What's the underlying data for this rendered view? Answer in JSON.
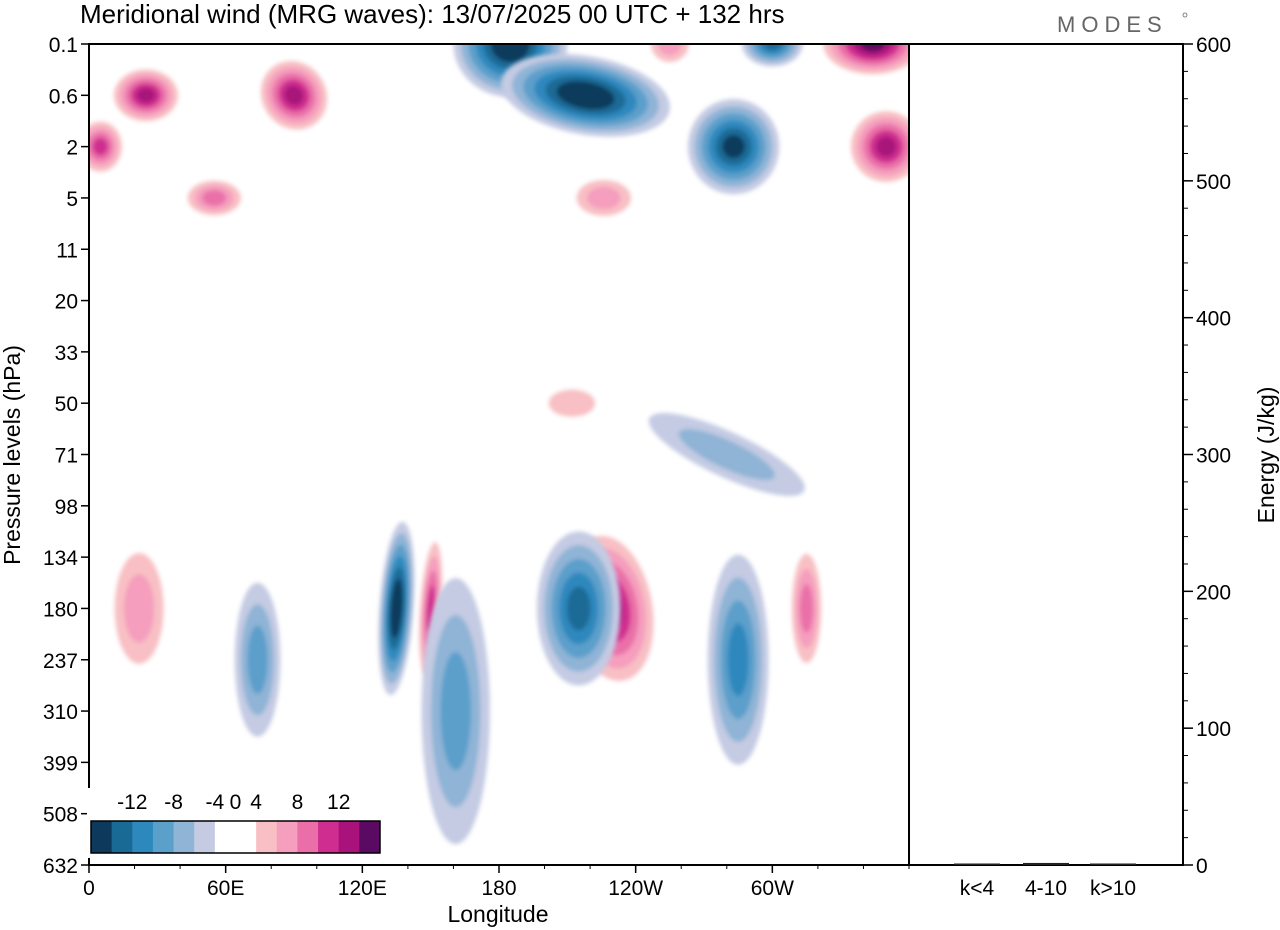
{
  "header": {
    "title": "Meridional wind (MRG waves):  13/07/2025  00 UTC  + 132 hrs",
    "logo": "MODES"
  },
  "chart_data": [
    {
      "type": "heatmap",
      "title": "Meridional wind (MRG waves):  13/07/2025  00 UTC  + 132 hrs",
      "xlabel": "Longitude",
      "ylabel": "Pressure levels (hPa)",
      "x_ticks": [
        "0",
        "60E",
        "120E",
        "180",
        "120W",
        "60W"
      ],
      "x_tick_positions_deg": [
        0,
        60,
        120,
        180,
        240,
        300
      ],
      "xlim_deg": [
        0,
        360
      ],
      "y_ticks": [
        "0.1",
        "0.6",
        "2",
        "5",
        "11",
        "20",
        "33",
        "50",
        "71",
        "98",
        "134",
        "180",
        "237",
        "310",
        "399",
        "508",
        "632"
      ],
      "colorbar": {
        "labels": [
          "-12",
          "-8",
          "-4",
          "0",
          "4",
          "8",
          "12"
        ],
        "levels": [
          -14,
          -12,
          -10,
          -8,
          -6,
          -4,
          -2,
          2,
          4,
          6,
          8,
          10,
          12,
          14
        ],
        "colors": [
          "#0d3a5c",
          "#1a6a96",
          "#2d88bd",
          "#5b9fcb",
          "#8fb4d6",
          "#c4cbe3",
          "#ffffff",
          "#ffffff",
          "#f8c0c4",
          "#f59ebd",
          "#ea6fa8",
          "#cf2d8f",
          "#a8127a",
          "#5b0a64"
        ]
      },
      "features": [
        {
          "lon": 135,
          "level": "180",
          "value": -14
        },
        {
          "lon": 150,
          "level": "180",
          "value": 10
        },
        {
          "lon": 229,
          "level": "180",
          "value": 12
        },
        {
          "lon": 215,
          "level": "180",
          "value": -10
        },
        {
          "lon": 285,
          "level": "237",
          "value": -8
        },
        {
          "lon": 315,
          "level": "180",
          "value": 8
        },
        {
          "lon": 22,
          "level": "180",
          "value": 6
        },
        {
          "lon": 74,
          "level": "237",
          "value": -6
        },
        {
          "lon": 161,
          "level": "310",
          "value": -6
        },
        {
          "lon": 185,
          "level": "0.1",
          "value": -14
        },
        {
          "lon": 218,
          "level": "0.6",
          "value": -14
        },
        {
          "lon": 283,
          "level": "2",
          "value": -12
        },
        {
          "lon": 344,
          "level": "0.1",
          "value": 14
        },
        {
          "lon": 350,
          "level": "2",
          "value": 12
        },
        {
          "lon": 25,
          "level": "0.6",
          "value": 12
        },
        {
          "lon": 5,
          "level": "2",
          "value": 10
        },
        {
          "lon": 90,
          "level": "0.6",
          "value": 12
        },
        {
          "lon": 55,
          "level": "5",
          "value": 8
        },
        {
          "lon": 226,
          "level": "5",
          "value": 6
        },
        {
          "lon": 255,
          "level": "0.1",
          "value": 6
        },
        {
          "lon": 300,
          "level": "0.1",
          "value": -10
        },
        {
          "lon": 212,
          "level": "50",
          "value": 4
        },
        {
          "lon": 280,
          "level": "71",
          "value": -4
        }
      ]
    },
    {
      "type": "bar",
      "title": "",
      "xlabel": "",
      "ylabel": "Energy (J/kg)",
      "categories": [
        "k<4",
        "4-10",
        "k>10"
      ],
      "values": [
        0.3,
        1.5,
        0.3
      ],
      "ylim": [
        0,
        600
      ],
      "y_ticks": [
        "0",
        "100",
        "200",
        "300",
        "400",
        "500",
        "600"
      ]
    }
  ]
}
